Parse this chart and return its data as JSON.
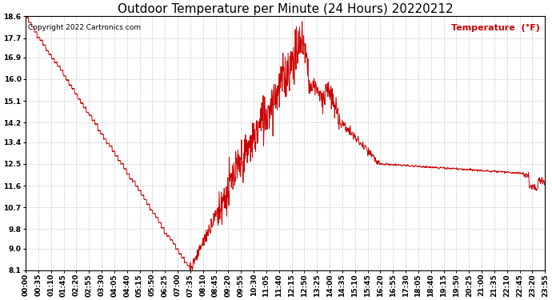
{
  "title": "Outdoor Temperature per Minute (24 Hours) 20220212",
  "copyright_text": "Copyright 2022 Cartronics.com",
  "legend_label": "Temperature  (°F)",
  "background_color": "#ffffff",
  "plot_bg_color": "#ffffff",
  "grid_color": "#bbbbbb",
  "line_color": "#cc0000",
  "yticks": [
    8.1,
    9.0,
    9.8,
    10.7,
    11.6,
    12.5,
    13.4,
    14.2,
    15.1,
    16.0,
    16.9,
    17.7,
    18.6
  ],
  "ylim": [
    8.1,
    18.6
  ],
  "xtick_labels": [
    "00:00",
    "00:35",
    "01:10",
    "01:45",
    "02:20",
    "02:55",
    "03:30",
    "04:05",
    "04:40",
    "05:15",
    "05:50",
    "06:25",
    "07:00",
    "07:35",
    "08:10",
    "08:45",
    "09:20",
    "09:55",
    "10:30",
    "11:05",
    "11:40",
    "12:15",
    "12:50",
    "13:25",
    "14:00",
    "14:35",
    "15:10",
    "15:45",
    "16:20",
    "16:55",
    "17:30",
    "18:05",
    "18:40",
    "19:15",
    "19:50",
    "20:25",
    "21:00",
    "21:35",
    "22:10",
    "22:45",
    "23:20",
    "23:55"
  ],
  "title_fontsize": 11,
  "axis_fontsize": 6.5,
  "copyright_fontsize": 6.5,
  "legend_fontsize": 8
}
